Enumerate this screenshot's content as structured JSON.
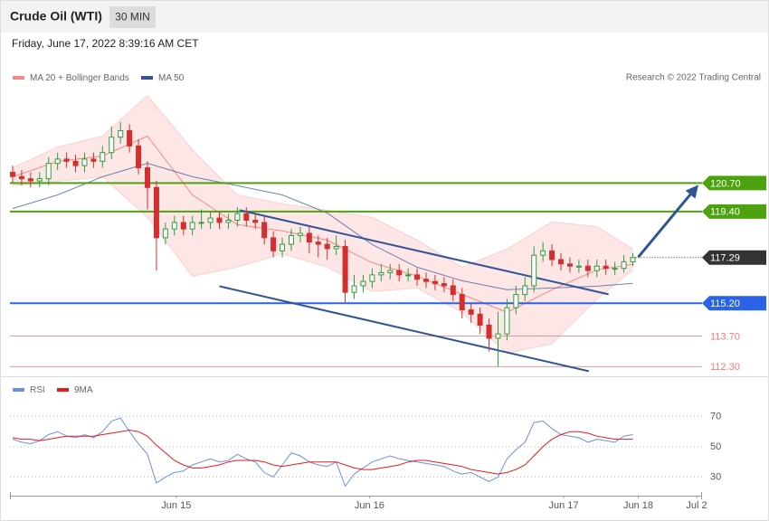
{
  "header": {
    "title": "Crude Oil (WTI)",
    "timeframe": "30 MIN",
    "date": "Friday, June 17, 2022 8:39:16 AM CET"
  },
  "chart_data": [
    {
      "type": "candlestick",
      "credit": "Research © 2022 Trading Central",
      "legend": [
        {
          "name": "MA 20 + Bollinger Bands",
          "color": "#f28b82"
        },
        {
          "name": "MA 50",
          "color": "#2f5597"
        }
      ],
      "up_color": "#2e9e3a",
      "down_color": "#d32f2f",
      "x": [
        0,
        1,
        2,
        3,
        4,
        5,
        6,
        7,
        8,
        9,
        10,
        11,
        12,
        13,
        14,
        15,
        16,
        17,
        18,
        19,
        20,
        21,
        22,
        23,
        24,
        25,
        26,
        27,
        28,
        29,
        30,
        31,
        32,
        33,
        34,
        35,
        36,
        37,
        38,
        39,
        40,
        41,
        42,
        43,
        44,
        45,
        46,
        47,
        48,
        49,
        50,
        51,
        52,
        53,
        54,
        55,
        56,
        57,
        58,
        59,
        60,
        61,
        62,
        63,
        64,
        65,
        66,
        67,
        68,
        69
      ],
      "open": [
        121.2,
        121.0,
        120.9,
        120.8,
        120.9,
        121.6,
        121.8,
        121.7,
        121.5,
        121.8,
        121.7,
        122.1,
        122.8,
        123.1,
        122.4,
        121.4,
        120.5,
        118.2,
        118.6,
        118.9,
        118.6,
        118.9,
        118.9,
        119.1,
        118.9,
        119.0,
        119.3,
        119.0,
        118.9,
        118.2,
        117.6,
        117.9,
        118.3,
        118.4,
        118.0,
        117.9,
        117.7,
        117.8,
        115.7,
        116.0,
        116.2,
        116.5,
        116.6,
        116.7,
        116.5,
        116.5,
        116.3,
        116.2,
        116.1,
        116.0,
        115.6,
        114.9,
        114.7,
        114.2,
        113.6,
        113.8,
        115.0,
        115.6,
        116.0,
        117.4,
        117.6,
        117.2,
        117.0,
        116.9,
        116.9,
        116.7,
        116.9,
        116.8,
        116.8,
        117.1
      ],
      "high": [
        121.5,
        121.3,
        121.2,
        121.2,
        121.9,
        122.1,
        122.1,
        122.0,
        122.1,
        122.1,
        122.4,
        123.3,
        123.5,
        123.4,
        122.7,
        121.7,
        120.8,
        118.9,
        119.2,
        119.2,
        119.2,
        119.5,
        119.4,
        119.4,
        119.3,
        119.6,
        119.6,
        119.3,
        119.2,
        118.5,
        118.2,
        118.6,
        118.7,
        118.7,
        118.3,
        118.2,
        118.3,
        118.1,
        116.5,
        116.5,
        116.8,
        117.0,
        117.0,
        117.0,
        116.8,
        116.8,
        116.6,
        116.5,
        116.4,
        116.3,
        115.9,
        115.2,
        115.0,
        114.5,
        114.8,
        115.4,
        116.0,
        116.4,
        117.8,
        118.0,
        117.9,
        117.5,
        117.3,
        117.2,
        117.2,
        117.2,
        117.2,
        117.1,
        117.4,
        117.5
      ],
      "low": [
        120.7,
        120.6,
        120.5,
        120.5,
        120.6,
        121.3,
        121.4,
        121.2,
        121.2,
        121.4,
        121.4,
        121.8,
        122.5,
        122.1,
        121.1,
        119.5,
        116.7,
        117.9,
        118.3,
        118.3,
        118.3,
        118.6,
        118.6,
        118.6,
        118.6,
        118.7,
        118.7,
        118.6,
        117.9,
        117.3,
        117.3,
        117.6,
        118.0,
        117.5,
        117.3,
        117.2,
        117.4,
        115.2,
        115.4,
        115.7,
        115.9,
        116.2,
        116.3,
        116.2,
        116.2,
        116.0,
        115.9,
        115.8,
        115.7,
        115.3,
        114.5,
        114.3,
        113.8,
        113.0,
        112.3,
        113.5,
        114.7,
        115.3,
        115.7,
        117.1,
        116.9,
        116.7,
        116.6,
        116.6,
        116.4,
        116.4,
        116.5,
        116.5,
        116.6,
        116.9
      ],
      "close": [
        121.0,
        120.9,
        120.8,
        120.9,
        121.6,
        121.8,
        121.7,
        121.5,
        121.8,
        121.7,
        122.1,
        122.8,
        123.1,
        122.4,
        121.4,
        120.5,
        118.2,
        118.6,
        118.9,
        118.6,
        118.9,
        118.9,
        119.1,
        118.9,
        119.0,
        119.3,
        119.0,
        118.9,
        118.2,
        117.6,
        117.9,
        118.3,
        118.4,
        118.0,
        117.9,
        117.7,
        117.8,
        115.7,
        116.0,
        116.2,
        116.5,
        116.6,
        116.7,
        116.5,
        116.5,
        116.3,
        116.2,
        116.1,
        116.0,
        115.6,
        114.9,
        114.7,
        114.2,
        113.6,
        113.8,
        115.0,
        115.6,
        116.0,
        117.4,
        117.6,
        117.2,
        117.0,
        116.9,
        116.9,
        116.7,
        116.9,
        116.8,
        116.8,
        117.1,
        117.29
      ],
      "bands": {
        "x": [
          0,
          5,
          10,
          15,
          20,
          25,
          30,
          35,
          40,
          45,
          50,
          55,
          60,
          65,
          69
        ],
        "upper": [
          121.4,
          122.35,
          122.85,
          124.71,
          122.23,
          120.16,
          119.75,
          119.46,
          119.13,
          118.09,
          116.85,
          117.68,
          118.92,
          118.71,
          117.68
        ],
        "lower": [
          120.58,
          120.78,
          120.99,
          119.13,
          116.44,
          116.85,
          117.47,
          116.85,
          115.74,
          115.9,
          114.78,
          112.92,
          113.34,
          115.4,
          116.73
        ],
        "ma20": [
          120.99,
          121.69,
          121.94,
          122.85,
          120.16,
          118.8,
          118.51,
          118.09,
          117.06,
          116.44,
          115.61,
          114.78,
          115.82,
          116.73,
          116.98
        ],
        "ma50": [
          119.54,
          120.16,
          120.99,
          121.61,
          120.99,
          120.58,
          120.16,
          119.33,
          117.89,
          116.85,
          116.23,
          115.82,
          115.9,
          115.98,
          116.11
        ]
      },
      "trendlines": [
        {
          "x": [
            25.25,
            66.3
          ],
          "y": [
            119.46,
            115.61
          ],
          "color": "#2f5597"
        },
        {
          "x": [
            23.0,
            64.1
          ],
          "y": [
            115.98,
            112.09
          ],
          "color": "#2f5597"
        }
      ],
      "arrow": {
        "x": [
          69.6,
          76.3
        ],
        "y": [
          117.31,
          120.62
        ],
        "color": "#2f5597"
      },
      "levels": [
        {
          "value": 120.7,
          "label": "120.70",
          "color": "#4ca30f",
          "box": true,
          "dotted": false
        },
        {
          "value": 119.4,
          "label": "119.40",
          "color": "#4ca30f",
          "box": true,
          "dotted": false
        },
        {
          "value": 117.29,
          "label": "117.29",
          "color": "#333333",
          "box": true,
          "dotted": true
        },
        {
          "value": 115.2,
          "label": "115.20",
          "color": "#2a62e8",
          "box": true,
          "dotted": false
        },
        {
          "value": 113.7,
          "label": "113.70",
          "color": "#f07a7a",
          "box": false,
          "dotted": false
        },
        {
          "value": 112.3,
          "label": "112.30",
          "color": "#f07a7a",
          "box": false,
          "dotted": false
        }
      ],
      "xlim": [
        -0.3,
        76.7
      ],
      "ylim": [
        111.9,
        126.1
      ],
      "xticks": [
        {
          "value": 18.2,
          "label": "Jun 15"
        },
        {
          "value": 39.7,
          "label": "Jun 16"
        },
        {
          "value": 61.3,
          "label": "Jun 17"
        },
        {
          "value": 69.6,
          "label": "Jun 18"
        },
        {
          "value": 76.1,
          "label": "Jul 2"
        }
      ]
    },
    {
      "type": "line",
      "ylim": [
        22.5,
        82.2
      ],
      "yticks": [
        30,
        50,
        70
      ],
      "series": [
        {
          "name": "RSI",
          "color": "#6b8fe0",
          "values": [
            55,
            53,
            52,
            54,
            58,
            60,
            57,
            56,
            58,
            56,
            60,
            67,
            69,
            60,
            52,
            45,
            26,
            30,
            33,
            34,
            38,
            40,
            42,
            40,
            41,
            45,
            42,
            40,
            33,
            30,
            38,
            46,
            44,
            40,
            38,
            37,
            40,
            24,
            32,
            36,
            40,
            42,
            44,
            42,
            41,
            40,
            39,
            38,
            37,
            34,
            32,
            33,
            30,
            27,
            30,
            42,
            48,
            53,
            66,
            67,
            62,
            58,
            57,
            56,
            53,
            55,
            54,
            53,
            57,
            58
          ]
        },
        {
          "name": "9MA",
          "color": "#e8191b",
          "values": [
            56,
            55,
            55,
            54,
            55,
            56,
            57,
            57,
            57,
            57,
            58,
            59,
            60,
            61,
            60,
            57,
            51,
            46,
            41,
            38,
            36,
            36,
            37,
            38,
            40,
            41,
            41,
            41,
            40,
            38,
            37,
            38,
            39,
            40,
            40,
            40,
            40,
            38,
            36,
            35,
            35,
            36,
            37,
            38,
            40,
            41,
            41,
            40,
            39,
            38,
            37,
            35,
            34,
            33,
            32,
            33,
            35,
            38,
            44,
            50,
            55,
            58,
            60,
            60,
            59,
            57,
            56,
            55,
            55,
            55
          ]
        }
      ]
    }
  ]
}
